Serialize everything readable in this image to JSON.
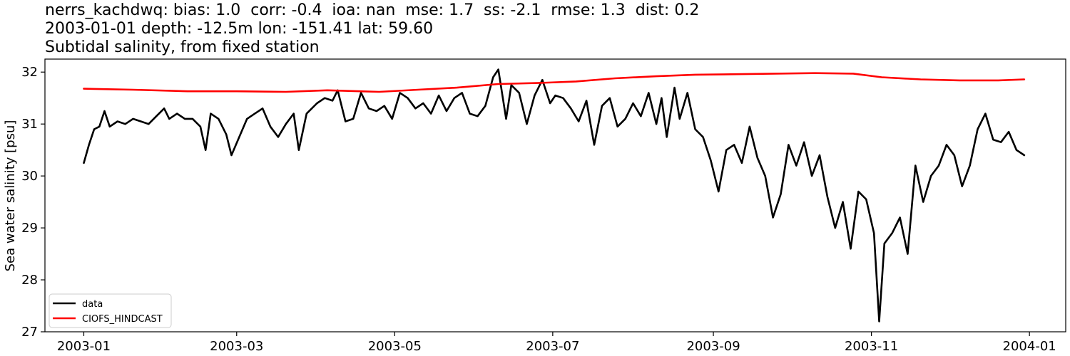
{
  "title": {
    "line1": "nerrs_kachdwq: bias: 1.0  corr: -0.4  ioa: nan  mse: 1.7  ss: -2.1  rmse: 1.3  dist: 0.2",
    "line2": "2003-01-01 depth: -12.5m lon: -151.41 lat: 59.60",
    "line3": "Subtidal salinity, from fixed station"
  },
  "chart_data": {
    "type": "line",
    "title": "nerrs_kachdwq: bias: 1.0  corr: -0.4  ioa: nan  mse: 1.7  ss: -2.1  rmse: 1.3  dist: 0.2",
    "subtitle": "2003-01-01 depth: -12.5m lon: -151.41 lat: 59.60 / Subtidal salinity, from fixed station",
    "xlabel": "",
    "ylabel": "Sea water salinity [psu]",
    "xlim": [
      "2002-12-17",
      "2004-01-15"
    ],
    "ylim": [
      27,
      32.25
    ],
    "x_ticks": [
      "2003-01",
      "2003-03",
      "2003-05",
      "2003-07",
      "2003-09",
      "2003-11",
      "2004-01"
    ],
    "y_ticks": [
      27,
      28,
      29,
      30,
      31,
      32
    ],
    "grid": false,
    "legend": "lower-left",
    "series": [
      {
        "name": "data",
        "color": "#000000",
        "points": [
          [
            "2003-01-01",
            30.25
          ],
          [
            "2003-01-03",
            30.6
          ],
          [
            "2003-01-05",
            30.9
          ],
          [
            "2003-01-07",
            30.95
          ],
          [
            "2003-01-09",
            31.25
          ],
          [
            "2003-01-11",
            30.95
          ],
          [
            "2003-01-14",
            31.05
          ],
          [
            "2003-01-17",
            31.0
          ],
          [
            "2003-01-20",
            31.1
          ],
          [
            "2003-01-23",
            31.05
          ],
          [
            "2003-01-26",
            31.0
          ],
          [
            "2003-01-29",
            31.15
          ],
          [
            "2003-02-01",
            31.3
          ],
          [
            "2003-02-03",
            31.1
          ],
          [
            "2003-02-06",
            31.2
          ],
          [
            "2003-02-09",
            31.1
          ],
          [
            "2003-02-12",
            31.1
          ],
          [
            "2003-02-15",
            30.95
          ],
          [
            "2003-02-17",
            30.5
          ],
          [
            "2003-02-19",
            31.2
          ],
          [
            "2003-02-22",
            31.1
          ],
          [
            "2003-02-25",
            30.8
          ],
          [
            "2003-02-27",
            30.4
          ],
          [
            "2003-03-02",
            30.75
          ],
          [
            "2003-03-05",
            31.1
          ],
          [
            "2003-03-08",
            31.2
          ],
          [
            "2003-03-11",
            31.3
          ],
          [
            "2003-03-14",
            30.95
          ],
          [
            "2003-03-17",
            30.75
          ],
          [
            "2003-03-20",
            31.0
          ],
          [
            "2003-03-23",
            31.2
          ],
          [
            "2003-03-25",
            30.5
          ],
          [
            "2003-03-28",
            31.2
          ],
          [
            "2003-04-01",
            31.4
          ],
          [
            "2003-04-04",
            31.5
          ],
          [
            "2003-04-07",
            31.45
          ],
          [
            "2003-04-09",
            31.65
          ],
          [
            "2003-04-12",
            31.05
          ],
          [
            "2003-04-15",
            31.1
          ],
          [
            "2003-04-18",
            31.6
          ],
          [
            "2003-04-21",
            31.3
          ],
          [
            "2003-04-24",
            31.25
          ],
          [
            "2003-04-27",
            31.35
          ],
          [
            "2003-04-30",
            31.1
          ],
          [
            "2003-05-03",
            31.6
          ],
          [
            "2003-05-06",
            31.5
          ],
          [
            "2003-05-09",
            31.3
          ],
          [
            "2003-05-12",
            31.4
          ],
          [
            "2003-05-15",
            31.2
          ],
          [
            "2003-05-18",
            31.55
          ],
          [
            "2003-05-21",
            31.25
          ],
          [
            "2003-05-24",
            31.5
          ],
          [
            "2003-05-27",
            31.6
          ],
          [
            "2003-05-30",
            31.2
          ],
          [
            "2003-06-02",
            31.15
          ],
          [
            "2003-06-05",
            31.35
          ],
          [
            "2003-06-08",
            31.9
          ],
          [
            "2003-06-10",
            32.05
          ],
          [
            "2003-06-13",
            31.1
          ],
          [
            "2003-06-15",
            31.75
          ],
          [
            "2003-06-18",
            31.6
          ],
          [
            "2003-06-21",
            31.0
          ],
          [
            "2003-06-24",
            31.55
          ],
          [
            "2003-06-27",
            31.85
          ],
          [
            "2003-06-30",
            31.4
          ],
          [
            "2003-07-02",
            31.55
          ],
          [
            "2003-07-05",
            31.5
          ],
          [
            "2003-07-08",
            31.3
          ],
          [
            "2003-07-11",
            31.05
          ],
          [
            "2003-07-14",
            31.45
          ],
          [
            "2003-07-17",
            30.6
          ],
          [
            "2003-07-20",
            31.35
          ],
          [
            "2003-07-23",
            31.5
          ],
          [
            "2003-07-26",
            30.95
          ],
          [
            "2003-07-29",
            31.1
          ],
          [
            "2003-08-01",
            31.4
          ],
          [
            "2003-08-04",
            31.15
          ],
          [
            "2003-08-07",
            31.6
          ],
          [
            "2003-08-10",
            31.0
          ],
          [
            "2003-08-12",
            31.5
          ],
          [
            "2003-08-14",
            30.75
          ],
          [
            "2003-08-17",
            31.7
          ],
          [
            "2003-08-19",
            31.1
          ],
          [
            "2003-08-22",
            31.6
          ],
          [
            "2003-08-25",
            30.9
          ],
          [
            "2003-08-28",
            30.75
          ],
          [
            "2003-08-31",
            30.3
          ],
          [
            "2003-09-03",
            29.7
          ],
          [
            "2003-09-06",
            30.5
          ],
          [
            "2003-09-09",
            30.6
          ],
          [
            "2003-09-12",
            30.25
          ],
          [
            "2003-09-15",
            30.95
          ],
          [
            "2003-09-18",
            30.35
          ],
          [
            "2003-09-21",
            30.0
          ],
          [
            "2003-09-24",
            29.2
          ],
          [
            "2003-09-27",
            29.65
          ],
          [
            "2003-09-30",
            30.6
          ],
          [
            "2003-10-03",
            30.2
          ],
          [
            "2003-10-06",
            30.65
          ],
          [
            "2003-10-09",
            30.0
          ],
          [
            "2003-10-12",
            30.4
          ],
          [
            "2003-10-15",
            29.6
          ],
          [
            "2003-10-18",
            29.0
          ],
          [
            "2003-10-21",
            29.5
          ],
          [
            "2003-10-24",
            28.6
          ],
          [
            "2003-10-27",
            29.7
          ],
          [
            "2003-10-30",
            29.55
          ],
          [
            "2003-11-02",
            28.9
          ],
          [
            "2003-11-04",
            27.2
          ],
          [
            "2003-11-06",
            28.7
          ],
          [
            "2003-11-09",
            28.9
          ],
          [
            "2003-11-12",
            29.2
          ],
          [
            "2003-11-15",
            28.5
          ],
          [
            "2003-11-18",
            30.2
          ],
          [
            "2003-11-21",
            29.5
          ],
          [
            "2003-11-24",
            30.0
          ],
          [
            "2003-11-27",
            30.2
          ],
          [
            "2003-11-30",
            30.6
          ],
          [
            "2003-12-03",
            30.4
          ],
          [
            "2003-12-06",
            29.8
          ],
          [
            "2003-12-09",
            30.2
          ],
          [
            "2003-12-12",
            30.9
          ],
          [
            "2003-12-15",
            31.2
          ],
          [
            "2003-12-18",
            30.7
          ],
          [
            "2003-12-21",
            30.65
          ],
          [
            "2003-12-24",
            30.85
          ],
          [
            "2003-12-27",
            30.5
          ],
          [
            "2003-12-30",
            30.4
          ]
        ]
      },
      {
        "name": "CIOFS_HINDCAST",
        "color": "#ff0000",
        "points": [
          [
            "2003-01-01",
            31.68
          ],
          [
            "2003-01-20",
            31.66
          ],
          [
            "2003-02-10",
            31.63
          ],
          [
            "2003-03-01",
            31.63
          ],
          [
            "2003-03-20",
            31.62
          ],
          [
            "2003-04-05",
            31.65
          ],
          [
            "2003-04-25",
            31.62
          ],
          [
            "2003-05-10",
            31.66
          ],
          [
            "2003-05-25",
            31.7
          ],
          [
            "2003-06-10",
            31.77
          ],
          [
            "2003-06-25",
            31.79
          ],
          [
            "2003-07-10",
            31.82
          ],
          [
            "2003-07-25",
            31.88
          ],
          [
            "2003-08-10",
            31.92
          ],
          [
            "2003-08-25",
            31.95
          ],
          [
            "2003-09-10",
            31.96
          ],
          [
            "2003-09-25",
            31.97
          ],
          [
            "2003-10-10",
            31.98
          ],
          [
            "2003-10-25",
            31.97
          ],
          [
            "2003-11-05",
            31.9
          ],
          [
            "2003-11-20",
            31.86
          ],
          [
            "2003-12-05",
            31.84
          ],
          [
            "2003-12-20",
            31.84
          ],
          [
            "2003-12-30",
            31.86
          ]
        ]
      }
    ]
  }
}
